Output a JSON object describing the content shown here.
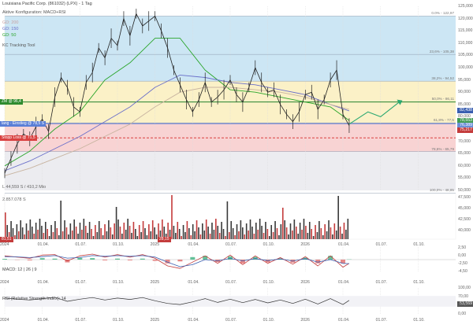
{
  "header": {
    "title": "Louisiana Pacific Corp. (861032) (LPX) - 1 Tag",
    "config_label": "Aktive Konfiguration: MACD+RSI",
    "ma_legend": [
      "GD: 200",
      "GD: 150",
      "GD: 50"
    ],
    "tool_label": "KC Tracking Tool"
  },
  "annotations": {
    "left_tags": [
      {
        "text": "ZM @ 96,4",
        "color": "#2e8b2e",
        "y_value": 86.0
      },
      {
        "text": "lang - Einstieg @ 78,5 S",
        "color": "#5a7fd6",
        "y_value": 77.2
      },
      {
        "text": "Stopp Loss @ 71,5",
        "color": "#d94040",
        "y_value": 71.4
      }
    ],
    "right_tags": [
      {
        "text": "82,438",
        "color": "#3a5fb0",
        "y_value": 82.4
      },
      {
        "text": "78,553",
        "color": "#3f9a52",
        "y_value": 78.5
      },
      {
        "text": "76,389",
        "color": "#6b8fd6",
        "y_value": 76.4
      },
      {
        "text": "75,217",
        "color": "#c43c3c",
        "y_value": 74.6
      }
    ],
    "fib_labels": [
      {
        "text": "0.0% - 122,97",
        "y_value": 121.0
      },
      {
        "text": "23,6% - 105,38",
        "y_value": 105.4
      },
      {
        "text": "38,2% - 94,52",
        "y_value": 94.5
      },
      {
        "text": "50,0% - 86,11",
        "y_value": 86.1
      },
      {
        "text": "61,8% - 77,5",
        "y_value": 77.5
      },
      {
        "text": "78,6% - 65,79",
        "y_value": 65.8
      },
      {
        "text": "100,0% - 48,85",
        "y_value": 48.9
      }
    ],
    "low_label": "L 44,559 S / 410,2 Mio",
    "vol_label": "2.857.078 S",
    "vol_markers": [
      {
        "text": "81,51",
        "color": "#c43c3c"
      },
      {
        "text": "28,15",
        "color": "#c43c3c"
      }
    ]
  },
  "panels": {
    "macd_label": "MACD: 12 | 26 | 9",
    "rsi_label": "RSI (Relative Strength Index): 14",
    "rsi_value": "53,569"
  },
  "colors": {
    "zone_blue": "#cce6f4",
    "zone_yellow": "#fbf1c7",
    "zone_red": "#f8d3d3",
    "zone_grey": "#ececf0",
    "gd200": "#c8b4a0",
    "gd150": "#6a6fc9",
    "gd50": "#2aa52a",
    "price": "#222222",
    "projection": "#2aa871"
  },
  "chart_data": {
    "type": "line",
    "title": "Louisiana Pacific Corp. (861032) (LPX) - 1 Tag",
    "price_axis": {
      "ylim": [
        50,
        125
      ],
      "ticks": [
        "125,000",
        "120,000",
        "115,000",
        "110,000",
        "105,000",
        "100,000",
        "95,000",
        "90,000",
        "85,000",
        "80,000",
        "75,000",
        "70,000",
        "65,000",
        "60,000",
        "55,000",
        "50,000"
      ]
    },
    "volume_axis": {
      "ticks": [
        "47,500",
        "45,000",
        "42,500",
        "40,000"
      ]
    },
    "macd_axis": {
      "ticks": [
        "2,50",
        "0,00",
        "-2,50",
        "-4,50"
      ]
    },
    "rsi_axis": {
      "ticks": [
        "100,00",
        "70,00",
        "30,00",
        "0,00"
      ]
    },
    "x_labels": [
      "2024",
      "01.04.",
      "01.07.",
      "01.10.",
      "2025",
      "01.04.",
      "01.07.",
      "01.10.",
      "2026",
      "01.04.",
      "01.07.",
      "01.10."
    ],
    "x_ticks_months": [
      0,
      3,
      6,
      9,
      12,
      15,
      18,
      21,
      24,
      27,
      30,
      33
    ],
    "series": [
      {
        "name": "LPX",
        "x_months": [
          0,
          0.5,
          1,
          1.5,
          2,
          2.5,
          3,
          3.5,
          4,
          4.5,
          5,
          5.5,
          6,
          6.5,
          7,
          7.5,
          8,
          8.5,
          9,
          9.5,
          10,
          10.5,
          11,
          11.5,
          12,
          12.5,
          13,
          13.5,
          14,
          14.5,
          15,
          15.5,
          16,
          16.5,
          17,
          17.5,
          18,
          18.5,
          19,
          19.5,
          20,
          20.5,
          21,
          21.5,
          22,
          22.5,
          23,
          23.5,
          24,
          24.5,
          25,
          25.5,
          26,
          26.5,
          27,
          27.5
        ],
        "values": [
          57,
          63,
          69,
          73,
          71,
          76,
          79,
          74,
          88,
          96,
          92,
          84,
          82,
          94,
          98,
          108,
          104,
          112,
          109,
          120,
          113,
          122,
          117,
          119,
          121,
          115,
          108,
          99,
          93,
          87,
          82,
          87,
          94,
          86,
          88,
          91,
          95,
          89,
          86,
          92,
          100,
          94,
          90,
          91,
          85,
          81,
          78,
          82,
          89,
          90,
          83,
          87,
          95,
          99,
          81,
          76.4
        ]
      }
    ],
    "moving_averages": [
      {
        "name": "GD: 50",
        "x_months": [
          0,
          2,
          4,
          6,
          8,
          10,
          12,
          14,
          16,
          18,
          20,
          22,
          24,
          26,
          27.5
        ],
        "values": [
          60,
          66,
          75,
          82,
          95,
          102,
          112,
          112,
          99,
          91,
          90,
          88,
          86,
          84,
          78.5
        ]
      },
      {
        "name": "GD: 150",
        "x_months": [
          0,
          2,
          4,
          6,
          8,
          10,
          12,
          14,
          16,
          18,
          20,
          22,
          24,
          26,
          27.5
        ],
        "values": [
          58,
          62,
          67,
          72,
          78,
          84,
          92,
          97,
          96,
          94,
          93,
          91,
          89,
          85,
          82.4
        ]
      },
      {
        "name": "GD: 200",
        "x_months": [
          0,
          2,
          4,
          6,
          8,
          10,
          12,
          14,
          16,
          18,
          20,
          22,
          24,
          26,
          27.5
        ],
        "values": [
          56,
          59,
          63,
          67,
          72,
          77,
          84,
          90,
          92,
          92,
          91,
          90,
          88,
          85,
          83.0
        ]
      }
    ],
    "projection": {
      "x_months": [
        27.5,
        29,
        30,
        31.5
      ],
      "values": [
        77,
        82,
        80,
        86
      ]
    },
    "macd": {
      "x_months": [
        0,
        1,
        2,
        3,
        4,
        5,
        6,
        7,
        8,
        9,
        10,
        11,
        12,
        13,
        14,
        15,
        16,
        17,
        18,
        19,
        20,
        21,
        22,
        23,
        24,
        25,
        26,
        27,
        27.5
      ],
      "macd": [
        1.5,
        1.0,
        0.5,
        1.8,
        2.0,
        -0.5,
        1.5,
        2.2,
        1.0,
        2.0,
        1.0,
        2.0,
        0.5,
        -2.5,
        -3.5,
        -1.0,
        1.5,
        -1.5,
        1.8,
        -2.0,
        1.5,
        -1.5,
        0.8,
        -1.8,
        1.2,
        -2.5,
        1.5,
        -3.0,
        -1.5
      ],
      "signal": [
        1.2,
        1.1,
        0.8,
        1.2,
        1.6,
        0.6,
        0.8,
        1.6,
        1.3,
        1.6,
        1.3,
        1.6,
        1.0,
        -1.0,
        -2.8,
        -2.0,
        0.0,
        -0.5,
        0.5,
        -0.5,
        0.4,
        -0.4,
        0.3,
        -0.6,
        0.4,
        -1.0,
        0.0,
        -1.5,
        -1.6
      ]
    },
    "rsi": {
      "x_months": [
        0,
        1,
        2,
        3,
        4,
        5,
        6,
        7,
        8,
        9,
        10,
        11,
        12,
        13,
        14,
        15,
        16,
        17,
        18,
        19,
        20,
        21,
        22,
        23,
        24,
        25,
        26,
        27,
        27.5
      ],
      "values": [
        62,
        58,
        55,
        60,
        65,
        50,
        58,
        64,
        55,
        62,
        57,
        64,
        52,
        42,
        38,
        48,
        60,
        46,
        58,
        45,
        57,
        44,
        55,
        42,
        58,
        40,
        60,
        38,
        53.6
      ]
    }
  }
}
